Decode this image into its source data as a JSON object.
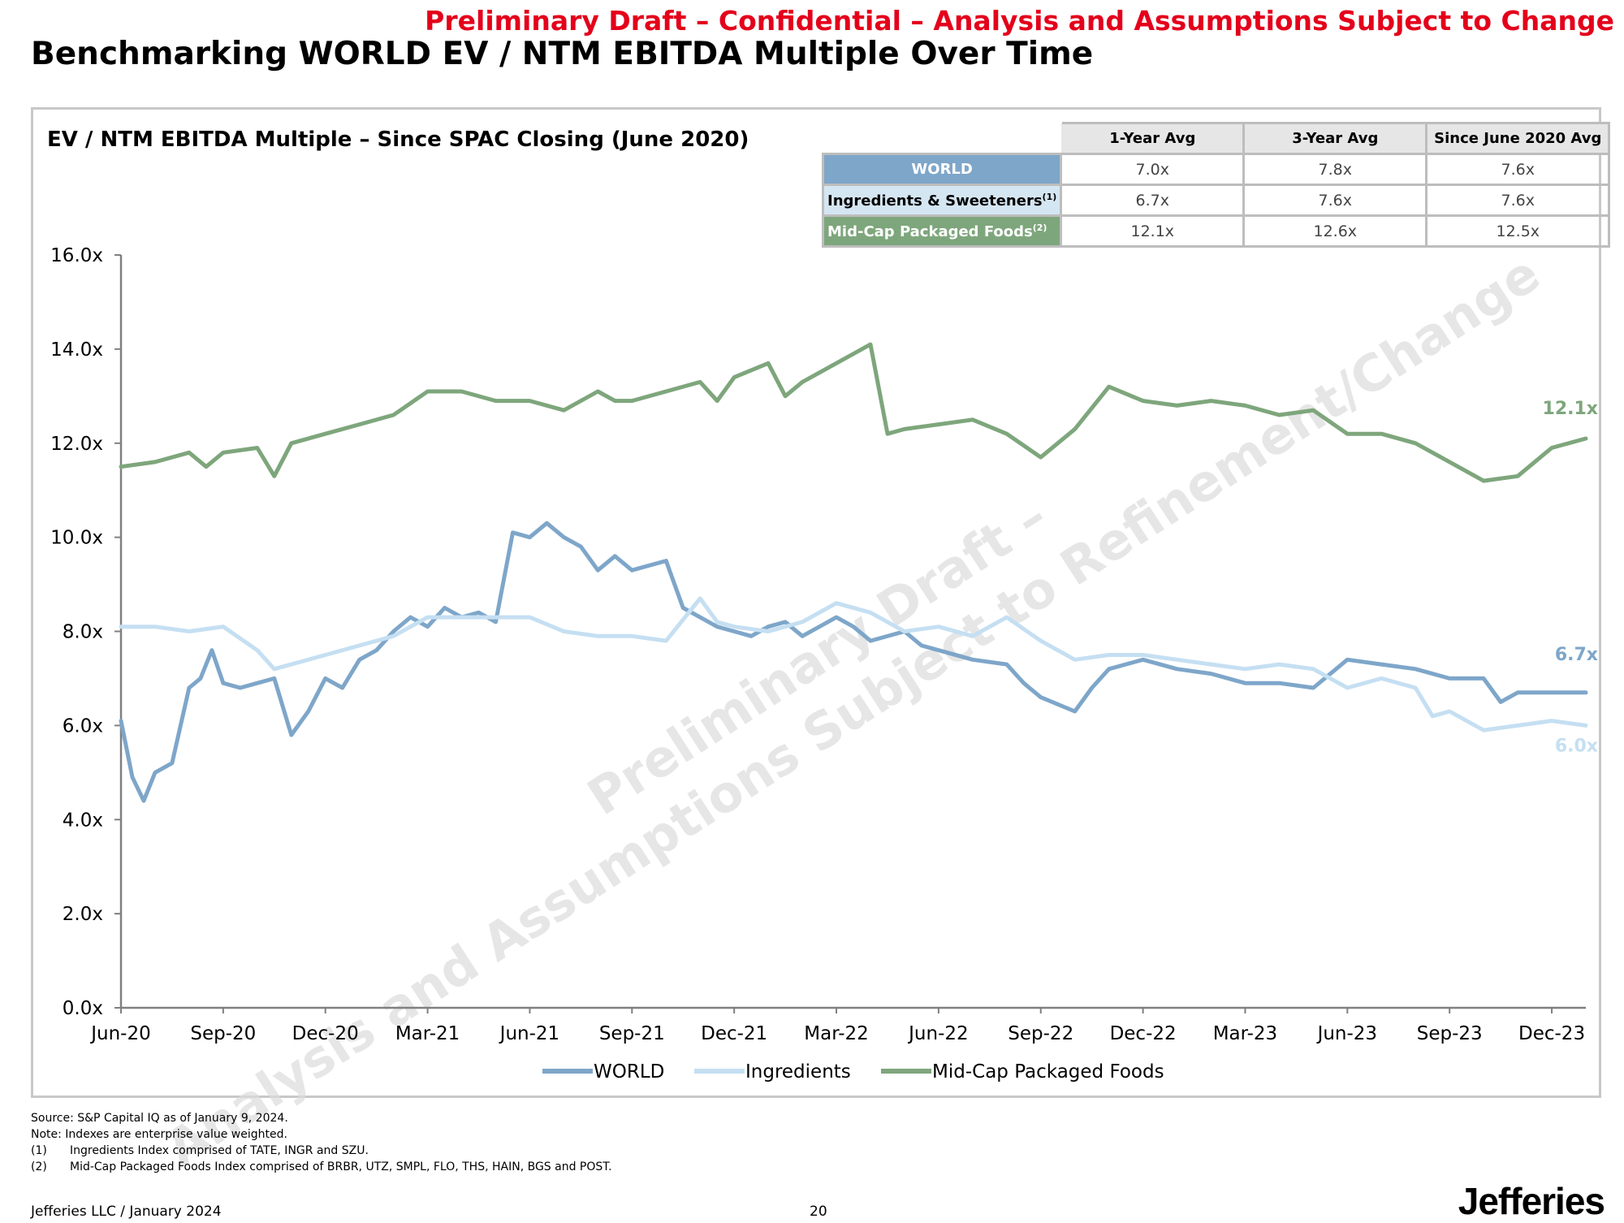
{
  "header": {
    "draft_banner": "Preliminary Draft – Confidential – Analysis and Assumptions Subject to Change",
    "title": "Benchmarking WORLD EV / NTM EBITDA Multiple Over Time"
  },
  "chart_data": {
    "type": "line",
    "title": "EV / NTM EBITDA Multiple – Since SPAC Closing (June 2020)",
    "xlabel": "",
    "ylabel": "",
    "ylim": [
      0,
      16
    ],
    "y_ticks": [
      "0.0x",
      "2.0x",
      "4.0x",
      "6.0x",
      "8.0x",
      "10.0x",
      "12.0x",
      "14.0x",
      "16.0x"
    ],
    "x_ticks": [
      "Jun-20",
      "Sep-20",
      "Dec-20",
      "Mar-21",
      "Jun-21",
      "Sep-21",
      "Dec-21",
      "Mar-22",
      "Jun-22",
      "Sep-22",
      "Dec-22",
      "Mar-23",
      "Jun-23",
      "Sep-23",
      "Dec-23"
    ],
    "x_start": "Jun-20",
    "x_end": "Jan-24",
    "grid": false,
    "legend_position": "bottom",
    "watermark": "Preliminary Draft – Analysis and Assumptions Subject to Refinement/Change",
    "series": [
      {
        "name": "WORLD",
        "color": "#7ea6c9",
        "end_label": "6.7x",
        "x": [
          "2020-06",
          "2020-06",
          "2020-06",
          "2020-07",
          "2020-07",
          "2020-08",
          "2020-08",
          "2020-08",
          "2020-09",
          "2020-09",
          "2020-10",
          "2020-10",
          "2020-11",
          "2020-11",
          "2020-12",
          "2020-12",
          "2021-01",
          "2021-01",
          "2021-02",
          "2021-02",
          "2021-03",
          "2021-03",
          "2021-04",
          "2021-04",
          "2021-05",
          "2021-05",
          "2021-06",
          "2021-06",
          "2021-07",
          "2021-07",
          "2021-08",
          "2021-08",
          "2021-09",
          "2021-10",
          "2021-10",
          "2021-11",
          "2021-11",
          "2021-12",
          "2021-12",
          "2022-01",
          "2022-01",
          "2022-02",
          "2022-03",
          "2022-03",
          "2022-04",
          "2022-05",
          "2022-05",
          "2022-06",
          "2022-07",
          "2022-08",
          "2022-08",
          "2022-09",
          "2022-10",
          "2022-10",
          "2022-11",
          "2022-12",
          "2023-01",
          "2023-02",
          "2023-03",
          "2023-04",
          "2023-05",
          "2023-06",
          "2023-07",
          "2023-08",
          "2023-09",
          "2023-10",
          "2023-10",
          "2023-11",
          "2023-12",
          "2024-01"
        ],
        "values": [
          6.1,
          4.9,
          4.4,
          5.0,
          5.2,
          6.8,
          7.0,
          7.6,
          6.9,
          6.8,
          6.9,
          7.0,
          5.8,
          6.3,
          7.0,
          6.8,
          7.4,
          7.6,
          8.0,
          8.3,
          8.1,
          8.5,
          8.3,
          8.4,
          8.2,
          10.1,
          10.0,
          10.3,
          10.0,
          9.8,
          9.3,
          9.6,
          9.3,
          9.5,
          8.5,
          8.3,
          8.1,
          8.0,
          7.9,
          8.1,
          8.2,
          7.9,
          8.3,
          8.1,
          7.8,
          8.0,
          7.7,
          7.6,
          7.4,
          7.3,
          6.9,
          6.6,
          6.3,
          6.8,
          7.2,
          7.4,
          7.2,
          7.1,
          6.9,
          6.9,
          6.8,
          7.4,
          7.3,
          7.2,
          7.0,
          7.0,
          6.5,
          6.7,
          6.7,
          6.7
        ]
      },
      {
        "name": "Ingredients",
        "color": "#c5dff2",
        "end_label": "6.0x",
        "x": [
          "2020-06",
          "2020-07",
          "2020-08",
          "2020-09",
          "2020-10",
          "2020-10",
          "2020-11",
          "2020-12",
          "2021-01",
          "2021-02",
          "2021-03",
          "2021-04",
          "2021-05",
          "2021-06",
          "2021-07",
          "2021-08",
          "2021-09",
          "2021-10",
          "2021-11",
          "2021-11",
          "2021-12",
          "2022-01",
          "2022-02",
          "2022-03",
          "2022-04",
          "2022-05",
          "2022-06",
          "2022-07",
          "2022-08",
          "2022-09",
          "2022-10",
          "2022-11",
          "2022-12",
          "2023-01",
          "2023-02",
          "2023-03",
          "2023-04",
          "2023-05",
          "2023-06",
          "2023-07",
          "2023-08",
          "2023-08",
          "2023-09",
          "2023-10",
          "2023-11",
          "2023-12",
          "2024-01"
        ],
        "values": [
          8.1,
          8.1,
          8.0,
          8.1,
          7.6,
          7.2,
          7.3,
          7.5,
          7.7,
          7.9,
          8.3,
          8.3,
          8.3,
          8.3,
          8.0,
          7.9,
          7.9,
          7.8,
          8.7,
          8.2,
          8.1,
          8.0,
          8.2,
          8.6,
          8.4,
          8.0,
          8.1,
          7.9,
          8.3,
          7.8,
          7.4,
          7.5,
          7.5,
          7.4,
          7.3,
          7.2,
          7.3,
          7.2,
          6.8,
          7.0,
          6.8,
          6.2,
          6.3,
          5.9,
          6.0,
          6.1,
          6.0
        ]
      },
      {
        "name": "Mid-Cap Packaged Foods",
        "color": "#7ea67c",
        "end_label": "12.1x",
        "x": [
          "2020-06",
          "2020-07",
          "2020-08",
          "2020-08",
          "2020-09",
          "2020-10",
          "2020-10",
          "2020-11",
          "2020-12",
          "2021-01",
          "2021-02",
          "2021-03",
          "2021-04",
          "2021-05",
          "2021-06",
          "2021-07",
          "2021-08",
          "2021-08",
          "2021-09",
          "2021-10",
          "2021-11",
          "2021-11",
          "2021-12",
          "2022-01",
          "2022-01",
          "2022-02",
          "2022-03",
          "2022-04",
          "2022-04",
          "2022-05",
          "2022-06",
          "2022-07",
          "2022-08",
          "2022-09",
          "2022-10",
          "2022-11",
          "2022-12",
          "2023-01",
          "2023-02",
          "2023-03",
          "2023-04",
          "2023-05",
          "2023-06",
          "2023-07",
          "2023-08",
          "2023-09",
          "2023-10",
          "2023-11",
          "2023-12",
          "2024-01"
        ],
        "values": [
          11.5,
          11.6,
          11.8,
          11.5,
          11.8,
          11.9,
          11.3,
          12.0,
          12.2,
          12.4,
          12.6,
          13.1,
          13.1,
          12.9,
          12.9,
          12.7,
          13.1,
          12.9,
          12.9,
          13.1,
          13.3,
          12.9,
          13.4,
          13.7,
          13.0,
          13.3,
          13.7,
          14.1,
          12.2,
          12.3,
          12.4,
          12.5,
          12.2,
          11.7,
          12.3,
          13.2,
          12.9,
          12.8,
          12.9,
          12.8,
          12.6,
          12.7,
          12.2,
          12.2,
          12.0,
          11.6,
          11.2,
          11.3,
          11.9,
          12.1
        ]
      }
    ],
    "averages_table": {
      "columns": [
        "1-Year Avg",
        "3-Year Avg",
        "Since June 2020 Avg"
      ],
      "rows": [
        {
          "label": "WORLD",
          "sup": "",
          "color": "#7ea6c9",
          "text_color": "#ffffff",
          "values": [
            "7.0x",
            "7.8x",
            "7.6x"
          ]
        },
        {
          "label": "Ingredients & Sweeteners",
          "sup": "(1)",
          "color": "#d5e6f3",
          "text_color": "#000000",
          "values": [
            "6.7x",
            "7.6x",
            "7.6x"
          ]
        },
        {
          "label": "Mid-Cap Packaged Foods",
          "sup": "(2)",
          "color": "#7ea67c",
          "text_color": "#ffffff",
          "values": [
            "12.1x",
            "12.6x",
            "12.5x"
          ]
        }
      ]
    }
  },
  "footnotes": {
    "source": "Source: S&P Capital IQ as of January 9, 2024.",
    "note": "Note: Indexes are enterprise value weighted.",
    "items": [
      {
        "num": "(1)",
        "text": "Ingredients Index comprised of TATE, INGR and SZU."
      },
      {
        "num": "(2)",
        "text": "Mid-Cap Packaged Foods Index comprised of BRBR, UTZ, SMPL, FLO, THS, HAIN, BGS and POST."
      }
    ]
  },
  "footer": {
    "left": "Jefferies LLC / January 2024",
    "page": "20",
    "logo": "Jefferies"
  }
}
